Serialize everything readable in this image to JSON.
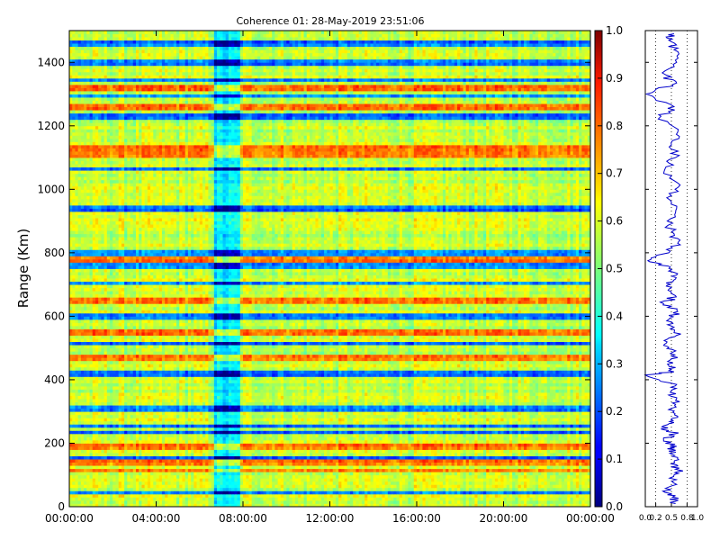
{
  "chart_data": [
    {
      "type": "heatmap",
      "title": "Coherence 01: 28-May-2019 23:51:06",
      "ylabel": "Range (Km)",
      "xlabel": "",
      "xlim": [
        "00:00:00",
        "24:00:00"
      ],
      "ylim": [
        0,
        1500
      ],
      "x_ticks": [
        "00:00:00",
        "04:00:00",
        "08:00:00",
        "12:00:00",
        "16:00:00",
        "20:00:00",
        "00:00:00"
      ],
      "y_ticks": [
        0,
        200,
        400,
        600,
        800,
        1000,
        1200,
        1400
      ],
      "colorbar": {
        "colormap": "jet",
        "range": [
          0.0,
          1.0
        ],
        "ticks": [
          "0.0",
          "0.1",
          "0.2",
          "0.3",
          "0.4",
          "0.5",
          "0.6",
          "0.7",
          "0.8",
          "0.9",
          "1.0"
        ]
      },
      "low_coherence_time_band": [
        "06:40:00",
        "07:50:00"
      ],
      "low_coherence_ranges_km": [
        45,
        155,
        235,
        255,
        310,
        420,
        515,
        600,
        705,
        760,
        800,
        940,
        1065,
        1230,
        1295,
        1345,
        1400,
        1460
      ],
      "high_coherence_ranges_km": [
        115,
        140,
        190,
        470,
        550,
        650,
        780,
        1110,
        1130,
        1260,
        1320
      ]
    },
    {
      "type": "line",
      "xlim": [
        0.0,
        1.0
      ],
      "ylim": [
        0,
        1500
      ],
      "x_ticks": [
        "0.0",
        "0.2",
        "0.5",
        "0.8",
        "1.0"
      ],
      "grid": true,
      "series": [
        {
          "color": "#0000cc",
          "profile_points": [
            [
              0.58,
              10
            ],
            [
              0.52,
              30
            ],
            [
              0.38,
              45
            ],
            [
              0.6,
              70
            ],
            [
              0.55,
              100
            ],
            [
              0.65,
              115
            ],
            [
              0.5,
              135
            ],
            [
              0.62,
              155
            ],
            [
              0.45,
              175
            ],
            [
              0.6,
              190
            ],
            [
              0.35,
              210
            ],
            [
              0.58,
              230
            ],
            [
              0.3,
              245
            ],
            [
              0.55,
              265
            ],
            [
              0.62,
              285
            ],
            [
              0.5,
              310
            ],
            [
              0.58,
              335
            ],
            [
              0.48,
              360
            ],
            [
              0.6,
              385
            ],
            [
              0.0,
              415
            ],
            [
              0.55,
              425
            ],
            [
              0.45,
              445
            ],
            [
              0.62,
              470
            ],
            [
              0.52,
              495
            ],
            [
              0.4,
              515
            ],
            [
              0.6,
              540
            ],
            [
              0.55,
              565
            ],
            [
              0.45,
              590
            ],
            [
              0.62,
              615
            ],
            [
              0.35,
              640
            ],
            [
              0.58,
              665
            ],
            [
              0.5,
              690
            ],
            [
              0.4,
              705
            ],
            [
              0.6,
              730
            ],
            [
              0.48,
              755
            ],
            [
              0.05,
              775
            ],
            [
              0.45,
              800
            ],
            [
              0.62,
              830
            ],
            [
              0.55,
              860
            ],
            [
              0.42,
              900
            ],
            [
              0.6,
              940
            ],
            [
              0.5,
              980
            ],
            [
              0.62,
              1020
            ],
            [
              0.38,
              1065
            ],
            [
              0.58,
              1100
            ],
            [
              0.5,
              1140
            ],
            [
              0.62,
              1180
            ],
            [
              0.3,
              1230
            ],
            [
              0.55,
              1260
            ],
            [
              0.02,
              1300
            ],
            [
              0.52,
              1330
            ],
            [
              0.4,
              1360
            ],
            [
              0.6,
              1400
            ],
            [
              0.55,
              1440
            ],
            [
              0.45,
              1470
            ],
            [
              0.55,
              1490
            ]
          ]
        }
      ]
    }
  ]
}
